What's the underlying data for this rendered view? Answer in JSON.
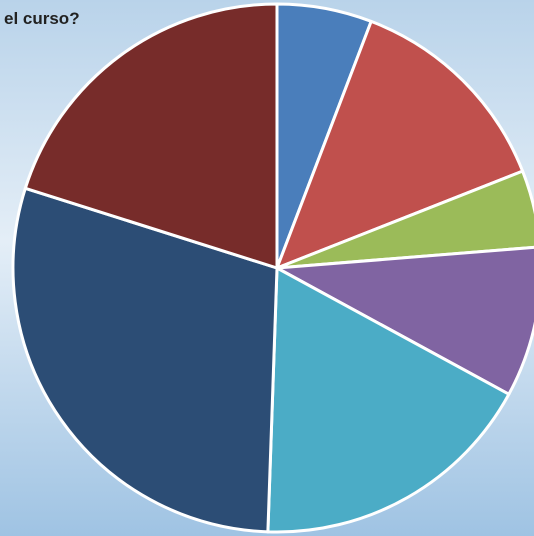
{
  "chart_data": {
    "type": "pie",
    "title": "el curso?",
    "values": [
      5.8,
      13.2,
      4.7,
      9.2,
      17.6,
      29.3,
      20.1
    ],
    "colors": [
      "#4a7ebb",
      "#c0504d",
      "#9bbb59",
      "#8064a2",
      "#4bacc6",
      "#2c4d75",
      "#772c2a"
    ]
  }
}
